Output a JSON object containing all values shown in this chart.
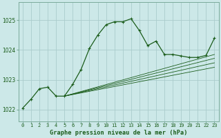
{
  "title": "Graphe pression niveau de la mer (hPa)",
  "bg_color": "#cce8e8",
  "grid_color": "#aacccc",
  "line_color": "#1a5c1a",
  "border_color": "#7aaa9a",
  "xlim": [
    -0.5,
    23.5
  ],
  "ylim": [
    1021.6,
    1025.6
  ],
  "yticks": [
    1022,
    1023,
    1024,
    1025
  ],
  "xtick_labels": [
    "0",
    "1",
    "2",
    "3",
    "4",
    "5",
    "6",
    "7",
    "8",
    "9",
    "10",
    "11",
    "12",
    "13",
    "14",
    "15",
    "16",
    "17",
    "18",
    "19",
    "20",
    "21",
    "22",
    "23"
  ],
  "main_series": {
    "x": [
      0,
      1,
      2,
      3,
      4,
      5,
      6,
      7,
      8,
      9,
      10,
      11,
      12,
      13,
      14,
      15,
      16,
      17,
      18,
      19,
      20,
      21,
      22,
      23
    ],
    "y": [
      1022.05,
      1022.35,
      1022.7,
      1022.75,
      1022.45,
      1022.45,
      1022.85,
      1023.35,
      1024.05,
      1024.5,
      1024.85,
      1024.95,
      1024.95,
      1025.05,
      1024.65,
      1024.15,
      1024.3,
      1023.85,
      1023.85,
      1023.8,
      1023.75,
      1023.75,
      1023.82,
      1024.4
    ]
  },
  "forecast_series": [
    {
      "x": [
        5,
        23
      ],
      "y": [
        1022.45,
        1023.85
      ]
    },
    {
      "x": [
        5,
        23
      ],
      "y": [
        1022.45,
        1023.72
      ]
    },
    {
      "x": [
        5,
        23
      ],
      "y": [
        1022.45,
        1023.57
      ]
    },
    {
      "x": [
        5,
        23
      ],
      "y": [
        1022.45,
        1023.42
      ]
    }
  ]
}
